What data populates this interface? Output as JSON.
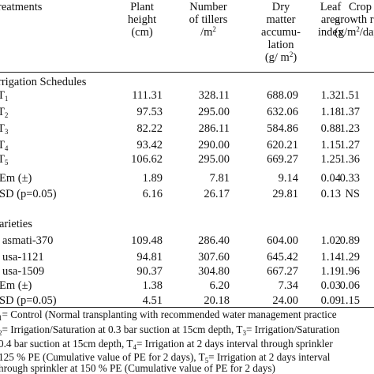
{
  "header": {
    "treatments": "reatments",
    "plant_height": [
      "Plant",
      "height",
      "(cm)"
    ],
    "tillers": [
      "Number",
      "of tillers",
      "/m"
    ],
    "tillers_sup": "2",
    "dry_matter": [
      "Dry",
      "matter",
      "accumu-",
      "lation",
      "(g/ m"
    ],
    "dry_matter_sup": "2",
    "dry_matter_close": ")",
    "lai": [
      "Leaf",
      "area",
      "index"
    ],
    "cgr": [
      "Crop",
      "growth rat",
      "(g/m"
    ],
    "cgr_sup": "2",
    "cgr_close": "/day"
  },
  "section_irrigation": "rrigation Schedules",
  "irrigation_rows": [
    {
      "label": "T",
      "sub": "1",
      "ph": "111.31",
      "nt": "328.11",
      "dm": "688.09",
      "lai": "1.32",
      "cgr": "1.51"
    },
    {
      "label": "T",
      "sub": "2",
      "ph": "97.53",
      "nt": "295.00",
      "dm": "632.06",
      "lai": "1.18",
      "cgr": "1.37"
    },
    {
      "label": "T",
      "sub": "3",
      "ph": "82.22",
      "nt": "286.11",
      "dm": "584.86",
      "lai": "0.88",
      "cgr": "1.23"
    },
    {
      "label": "T",
      "sub": "4",
      "ph": "93.42",
      "nt": "290.00",
      "dm": "620.21",
      "lai": "1.15",
      "cgr": "1.27"
    },
    {
      "label": "T",
      "sub": "5",
      "ph": "106.62",
      "nt": "295.00",
      "dm": "669.27",
      "lai": "1.25",
      "cgr": "1.36"
    }
  ],
  "irrigation_stats": [
    {
      "label": "Em (±)",
      "ph": "1.89",
      "nt": "7.81",
      "dm": "9.14",
      "lai": "0.04",
      "cgr": "0.33"
    },
    {
      "label": "SD (p=0.05)",
      "ph": "6.16",
      "nt": "26.17",
      "dm": "29.81",
      "lai": "0.13",
      "cgr": "NS"
    }
  ],
  "section_varieties": "arieties",
  "variety_rows": [
    {
      "label": "asmati-370",
      "ph": "109.48",
      "nt": "286.40",
      "dm": "604.00",
      "lai": "1.02",
      "cgr": "0.89"
    },
    {
      "label": "usa-1121",
      "ph": "94.81",
      "nt": "307.60",
      "dm": "645.42",
      "lai": "1.14",
      "cgr": "1.29"
    },
    {
      "label": "usa-1509",
      "ph": "90.37",
      "nt": "304.80",
      "dm": "667.27",
      "lai": "1.19",
      "cgr": "1.96"
    },
    {
      "label": "Em (±)",
      "ph": "1.38",
      "nt": "6.20",
      "dm": "7.34",
      "lai": "0.03",
      "cgr": "0.06"
    },
    {
      "label": "SD (p=0.05)",
      "ph": "4.51",
      "nt": "20.18",
      "dm": "24.00",
      "lai": "0.09",
      "cgr": "1.15"
    }
  ],
  "footnotes": [
    "= Control (Normal transplanting with recommended water management practice",
    "= Irrigation/Saturation at 0.3 bar suction at 15cm depth, T",
    "= Irrigation/Saturation",
    "0.4 bar suction at 15cm depth, T",
    "= Irrigation at 2 days interval through sprinkler",
    "125 % PE (Cumulative value of PE for 2 days), T",
    "= Irrigation at 2 days interval",
    "hrough sprinkler at 150 % PE (Cumulative value of PE for 2 days)"
  ],
  "footnote_subs": [
    "1",
    "2",
    "3",
    "4",
    "5"
  ]
}
